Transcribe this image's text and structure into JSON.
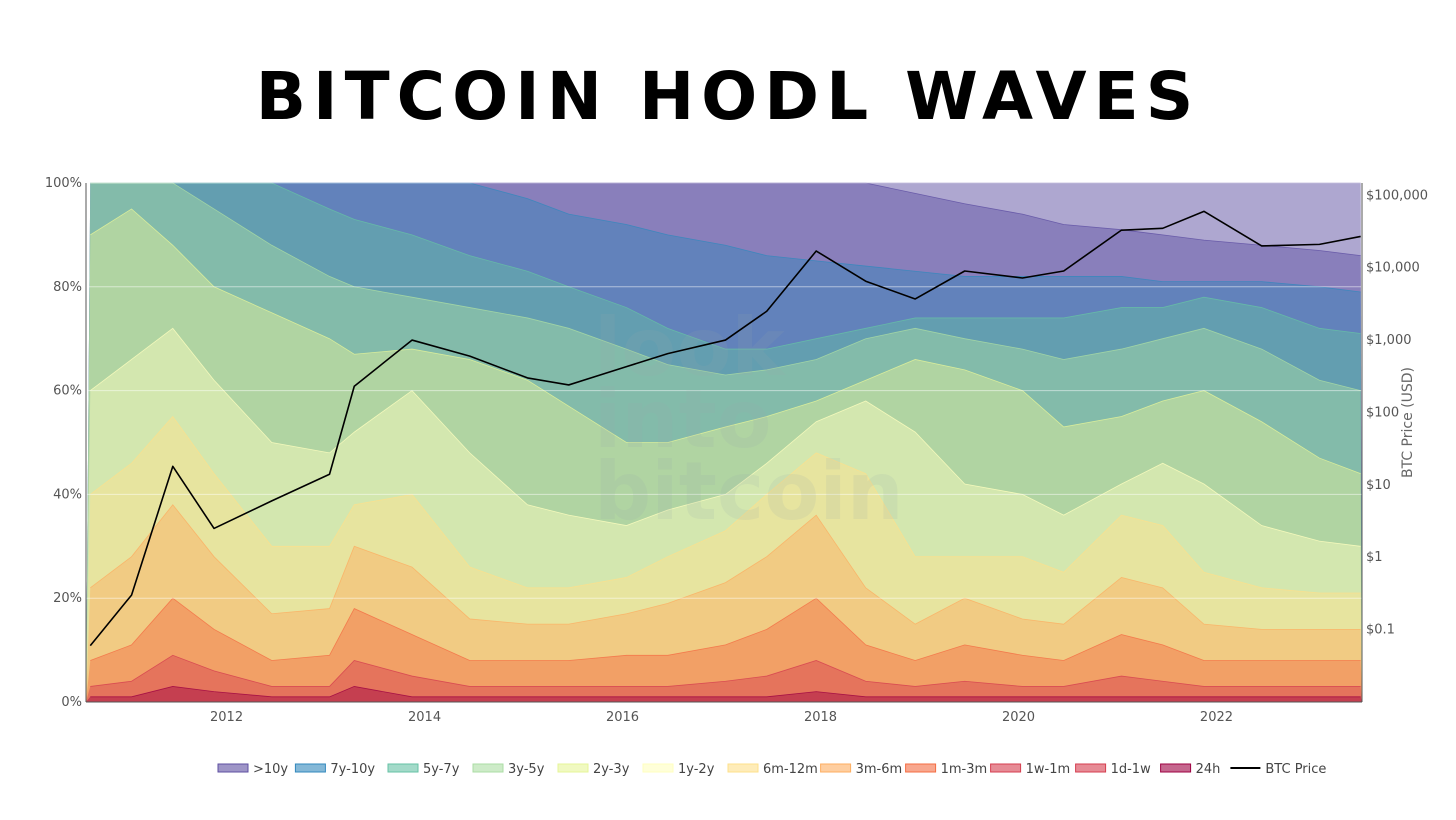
{
  "chart_data": {
    "type": "area",
    "title": "BITCOIN HODL WAVES",
    "y_left": {
      "label": "",
      "ticks": [
        "0%",
        "20%",
        "40%",
        "60%",
        "80%",
        "100%"
      ],
      "range": [
        0,
        100
      ]
    },
    "y_right": {
      "label": "BTC Price (USD)",
      "scale": "log",
      "ticks": [
        "$0.1",
        "$1",
        "$10",
        "$100",
        "$1,000",
        "$10,000",
        "$100,000"
      ]
    },
    "x": {
      "ticks": [
        "2012",
        "2014",
        "2016",
        "2018",
        "2020",
        "2022"
      ],
      "dates": [
        "2010-08",
        "2011-01",
        "2011-06",
        "2011-11",
        "2012-06",
        "2013-01",
        "2013-04",
        "2013-11",
        "2014-06",
        "2015-01",
        "2015-06",
        "2016-01",
        "2016-06",
        "2017-01",
        "2017-06",
        "2017-12",
        "2018-06",
        "2018-12",
        "2019-06",
        "2020-01",
        "2020-06",
        "2021-01",
        "2021-06",
        "2021-11",
        "2022-06",
        "2023-01",
        "2023-06"
      ]
    },
    "series": [
      {
        "name": "24h",
        "color": "#9e0142",
        "values": [
          1,
          1,
          3,
          2,
          1,
          1,
          3,
          1,
          1,
          1,
          1,
          1,
          1,
          1,
          1,
          2,
          1,
          1,
          1,
          1,
          1,
          1,
          1,
          1,
          1,
          1,
          1
        ]
      },
      {
        "name": "1d-1w",
        "color": "#d53e4f",
        "values": [
          3,
          4,
          9,
          6,
          3,
          3,
          8,
          5,
          3,
          3,
          3,
          3,
          3,
          4,
          5,
          8,
          4,
          3,
          4,
          3,
          3,
          5,
          4,
          3,
          3,
          3,
          3
        ]
      },
      {
        "name": "1w-1m",
        "color": "#f46d43",
        "values": [
          8,
          11,
          20,
          14,
          8,
          9,
          18,
          13,
          8,
          8,
          8,
          9,
          9,
          11,
          14,
          20,
          11,
          8,
          11,
          9,
          8,
          13,
          11,
          8,
          8,
          8,
          8
        ]
      },
      {
        "name": "1m-3m",
        "color": "#fdae61",
        "values": [
          22,
          28,
          38,
          28,
          17,
          18,
          30,
          26,
          16,
          15,
          15,
          17,
          19,
          23,
          28,
          36,
          22,
          15,
          20,
          16,
          15,
          24,
          22,
          15,
          14,
          14,
          14
        ]
      },
      {
        "name": "3m-6m",
        "color": "#fee08b",
        "values": [
          40,
          46,
          55,
          44,
          30,
          30,
          38,
          40,
          26,
          22,
          22,
          24,
          28,
          33,
          40,
          48,
          44,
          28,
          28,
          28,
          25,
          36,
          34,
          25,
          22,
          21,
          21
        ]
      },
      {
        "name": "6m-12m",
        "color": "#ffffbf",
        "values": [
          60,
          66,
          72,
          62,
          50,
          48,
          52,
          60,
          48,
          38,
          36,
          34,
          37,
          40,
          46,
          54,
          58,
          52,
          42,
          40,
          36,
          42,
          46,
          42,
          34,
          31,
          30
        ]
      },
      {
        "name": "1y-2y",
        "color": "#e6f598",
        "values": [
          90,
          95,
          88,
          80,
          75,
          70,
          67,
          68,
          66,
          62,
          57,
          50,
          50,
          53,
          55,
          58,
          62,
          66,
          64,
          60,
          53,
          55,
          58,
          60,
          54,
          47,
          44
        ]
      },
      {
        "name": "2y-3y",
        "color": "#abdda4",
        "values": [
          100,
          100,
          100,
          95,
          88,
          82,
          80,
          78,
          76,
          74,
          72,
          68,
          65,
          63,
          64,
          66,
          70,
          72,
          70,
          68,
          66,
          68,
          70,
          72,
          68,
          62,
          60
        ]
      },
      {
        "name": "3y-5y",
        "color": "#66c2a5",
        "values": [
          100,
          100,
          100,
          100,
          100,
          95,
          93,
          90,
          86,
          83,
          80,
          76,
          72,
          68,
          68,
          70,
          72,
          74,
          74,
          74,
          74,
          76,
          76,
          78,
          76,
          72,
          71
        ]
      },
      {
        "name": "5y-7y",
        "color": "#3288bd",
        "values": [
          100,
          100,
          100,
          100,
          100,
          100,
          100,
          100,
          100,
          97,
          94,
          92,
          90,
          88,
          86,
          85,
          84,
          83,
          82,
          82,
          82,
          82,
          81,
          81,
          81,
          80,
          79
        ]
      },
      {
        "name": "7y-10y",
        "color": "#5e4fa2",
        "values": [
          100,
          100,
          100,
          100,
          100,
          100,
          100,
          100,
          100,
          100,
          100,
          100,
          100,
          100,
          100,
          100,
          100,
          98,
          96,
          94,
          92,
          91,
          90,
          89,
          88,
          87,
          86
        ]
      },
      {
        "name": ">10y",
        "color": "#5e4fa2",
        "values": [
          100,
          100,
          100,
          100,
          100,
          100,
          100,
          100,
          100,
          100,
          100,
          100,
          100,
          100,
          100,
          100,
          100,
          100,
          100,
          100,
          100,
          100,
          100,
          100,
          100,
          100,
          100
        ]
      }
    ],
    "price": {
      "name": "BTC Price",
      "color": "#000000",
      "values": [
        0.06,
        0.3,
        18,
        2.5,
        6,
        14,
        230,
        1000,
        600,
        300,
        240,
        430,
        650,
        1000,
        2500,
        17000,
        6500,
        3700,
        9000,
        7200,
        9000,
        33000,
        35000,
        60000,
        20000,
        21000,
        27000
      ]
    },
    "legend": {
      "position": "bottom",
      "items": [
        ">10y",
        "7y-10y",
        "5y-7y",
        "3y-5y",
        "2y-3y",
        "1y-2y",
        "6m-12m",
        "3m-6m",
        "1m-3m",
        "1w-1m",
        "1d-1w",
        "24h",
        "BTC Price"
      ]
    },
    "watermark": [
      "look",
      "into",
      "bitcoin"
    ]
  }
}
